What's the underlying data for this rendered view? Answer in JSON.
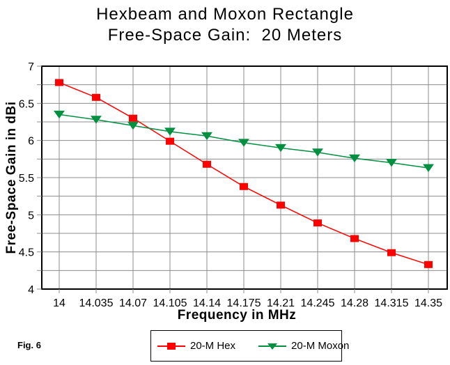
{
  "title": {
    "line1": "Hexbeam and Moxon Rectangle",
    "line2": "Free-Space Gain:  20 Meters"
  },
  "fig_label": "Fig. 6",
  "colors": {
    "hex_series": "#ff0000",
    "moxon_series": "#009040",
    "grid": "#8c8c8c",
    "axis": "#000000",
    "background": "#ffffff"
  },
  "chart_data": {
    "type": "line",
    "title": "Hexbeam and Moxon Rectangle Free-Space Gain: 20 Meters",
    "xlabel": "Frequency in MHz",
    "ylabel": "Free-Space Gain in dBi",
    "x": [
      14,
      14.035,
      14.07,
      14.105,
      14.14,
      14.175,
      14.21,
      14.245,
      14.28,
      14.315,
      14.35
    ],
    "x_tick_labels": [
      "14",
      "14.035",
      "14.07",
      "14.105",
      "14.14",
      "14.175",
      "14.21",
      "14.245",
      "14.28",
      "14.315",
      "14.35"
    ],
    "y_tick_labels": [
      "7",
      "6.5",
      "6",
      "5.5",
      "5",
      "4.5",
      "4"
    ],
    "ylim": [
      4,
      7
    ],
    "y_major_step": 0.5,
    "y_minor_step": 0.25,
    "grid": true,
    "legend_position": "bottom",
    "series": [
      {
        "name": "20-M Hex",
        "color": "#ff0000",
        "marker": "square",
        "values": [
          6.78,
          6.58,
          6.3,
          5.99,
          5.68,
          5.38,
          5.13,
          4.89,
          4.68,
          4.49,
          4.33
        ]
      },
      {
        "name": "20-M Moxon",
        "color": "#009040",
        "marker": "triangle-down",
        "values": [
          6.35,
          6.28,
          6.2,
          6.12,
          6.06,
          5.97,
          5.9,
          5.84,
          5.76,
          5.7,
          5.63
        ]
      }
    ]
  },
  "legend": {
    "items": [
      {
        "label": "20-M Hex",
        "color": "#ff0000",
        "marker": "square"
      },
      {
        "label": "20-M Moxon",
        "color": "#009040",
        "marker": "triangle-down"
      }
    ]
  }
}
